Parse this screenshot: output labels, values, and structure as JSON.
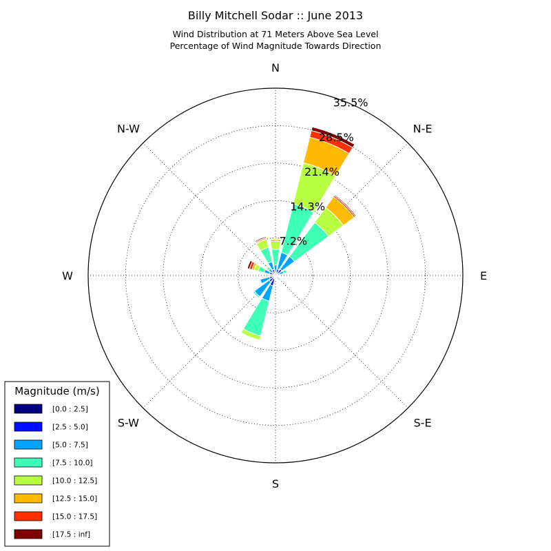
{
  "chart_data": {
    "type": "windrose",
    "title": "Billy Mitchell Sodar :: June 2013",
    "subtitle_lines": [
      "Wind Distribution at 71 Meters Above Sea Level",
      "Percentage of Wind Magnitude Towards Direction"
    ],
    "directions": [
      "N",
      "N-E",
      "E",
      "S-E",
      "S",
      "S-W",
      "W",
      "N-W"
    ],
    "ring_labels": [
      "7.2%",
      "14.3%",
      "21.4%",
      "28.5%",
      "35.5%"
    ],
    "rmax": 35.5,
    "grid": true,
    "legend": {
      "title": "Magnitude (m/s)",
      "placement": "bottom-left"
    },
    "bins": [
      {
        "label": "[0.0 : 2.5]",
        "color": "#00007f"
      },
      {
        "label": "[2.5 : 5.0]",
        "color": "#0010ff"
      },
      {
        "label": "[5.0 : 7.5]",
        "color": "#00a4ff"
      },
      {
        "label": "[7.5 : 10.0]",
        "color": "#40ffb7"
      },
      {
        "label": "[10.0 : 12.5]",
        "color": "#b7ff40"
      },
      {
        "label": "[12.5 : 15.0]",
        "color": "#ffb900"
      },
      {
        "label": "[15.0 : 17.5]",
        "color": "#ff3000"
      },
      {
        "label": "[17.5 : inf]",
        "color": "#7f0000"
      }
    ],
    "sectors": [
      {
        "angle_deg": 0,
        "cumulative": [
          0.3,
          0.6,
          2.0,
          5.0,
          6.5,
          6.8,
          6.9,
          7.0
        ]
      },
      {
        "angle_deg": 22.5,
        "cumulative": [
          0.5,
          1.3,
          4.5,
          14.0,
          22.0,
          27.0,
          28.3,
          29.0
        ]
      },
      {
        "angle_deg": 45,
        "cumulative": [
          0.5,
          1.5,
          4.5,
          12.5,
          16.0,
          18.5,
          18.8,
          19.0
        ]
      },
      {
        "angle_deg": 67.5,
        "cumulative": [
          0.3,
          0.8,
          1.6,
          2.2,
          2.4,
          2.4,
          2.4,
          2.4
        ]
      },
      {
        "angle_deg": 90,
        "cumulative": [
          0.2,
          0.4,
          0.5,
          0.6,
          0.6,
          0.6,
          0.6,
          0.6
        ]
      },
      {
        "angle_deg": 112.5,
        "cumulative": [
          0.1,
          0.2,
          0.3,
          0.3,
          0.3,
          0.3,
          0.3,
          0.3
        ]
      },
      {
        "angle_deg": 135,
        "cumulative": [
          0.3,
          0.8,
          1.1,
          1.3,
          1.4,
          1.4,
          1.4,
          1.4
        ]
      },
      {
        "angle_deg": 157.5,
        "cumulative": [
          0.2,
          0.4,
          0.6,
          0.7,
          0.7,
          0.7,
          0.7,
          0.7
        ]
      },
      {
        "angle_deg": 180,
        "cumulative": [
          0.2,
          0.5,
          0.7,
          0.8,
          0.8,
          0.8,
          0.8,
          0.8
        ]
      },
      {
        "angle_deg": 202.5,
        "cumulative": [
          0.6,
          2.0,
          5.0,
          11.8,
          12.6,
          12.6,
          12.6,
          12.6
        ]
      },
      {
        "angle_deg": 225,
        "cumulative": [
          0.5,
          1.5,
          5.0,
          5.3,
          5.3,
          5.3,
          5.3,
          5.3
        ]
      },
      {
        "angle_deg": 247.5,
        "cumulative": [
          0.4,
          1.2,
          3.0,
          3.2,
          3.2,
          3.2,
          3.2,
          3.2
        ]
      },
      {
        "angle_deg": 270,
        "cumulative": [
          0.3,
          0.7,
          1.0,
          1.1,
          1.1,
          1.1,
          1.1,
          1.1
        ]
      },
      {
        "angle_deg": 292.5,
        "cumulative": [
          0.5,
          1.2,
          2.2,
          3.4,
          4.2,
          4.6,
          5.1,
          5.5
        ]
      },
      {
        "angle_deg": 315,
        "cumulative": [
          0.3,
          0.8,
          1.6,
          2.1,
          2.3,
          2.4,
          2.5,
          2.5
        ]
      },
      {
        "angle_deg": 337.5,
        "cumulative": [
          0.4,
          1.2,
          2.7,
          5.5,
          7.0,
          7.2,
          7.4,
          7.6
        ]
      }
    ]
  }
}
